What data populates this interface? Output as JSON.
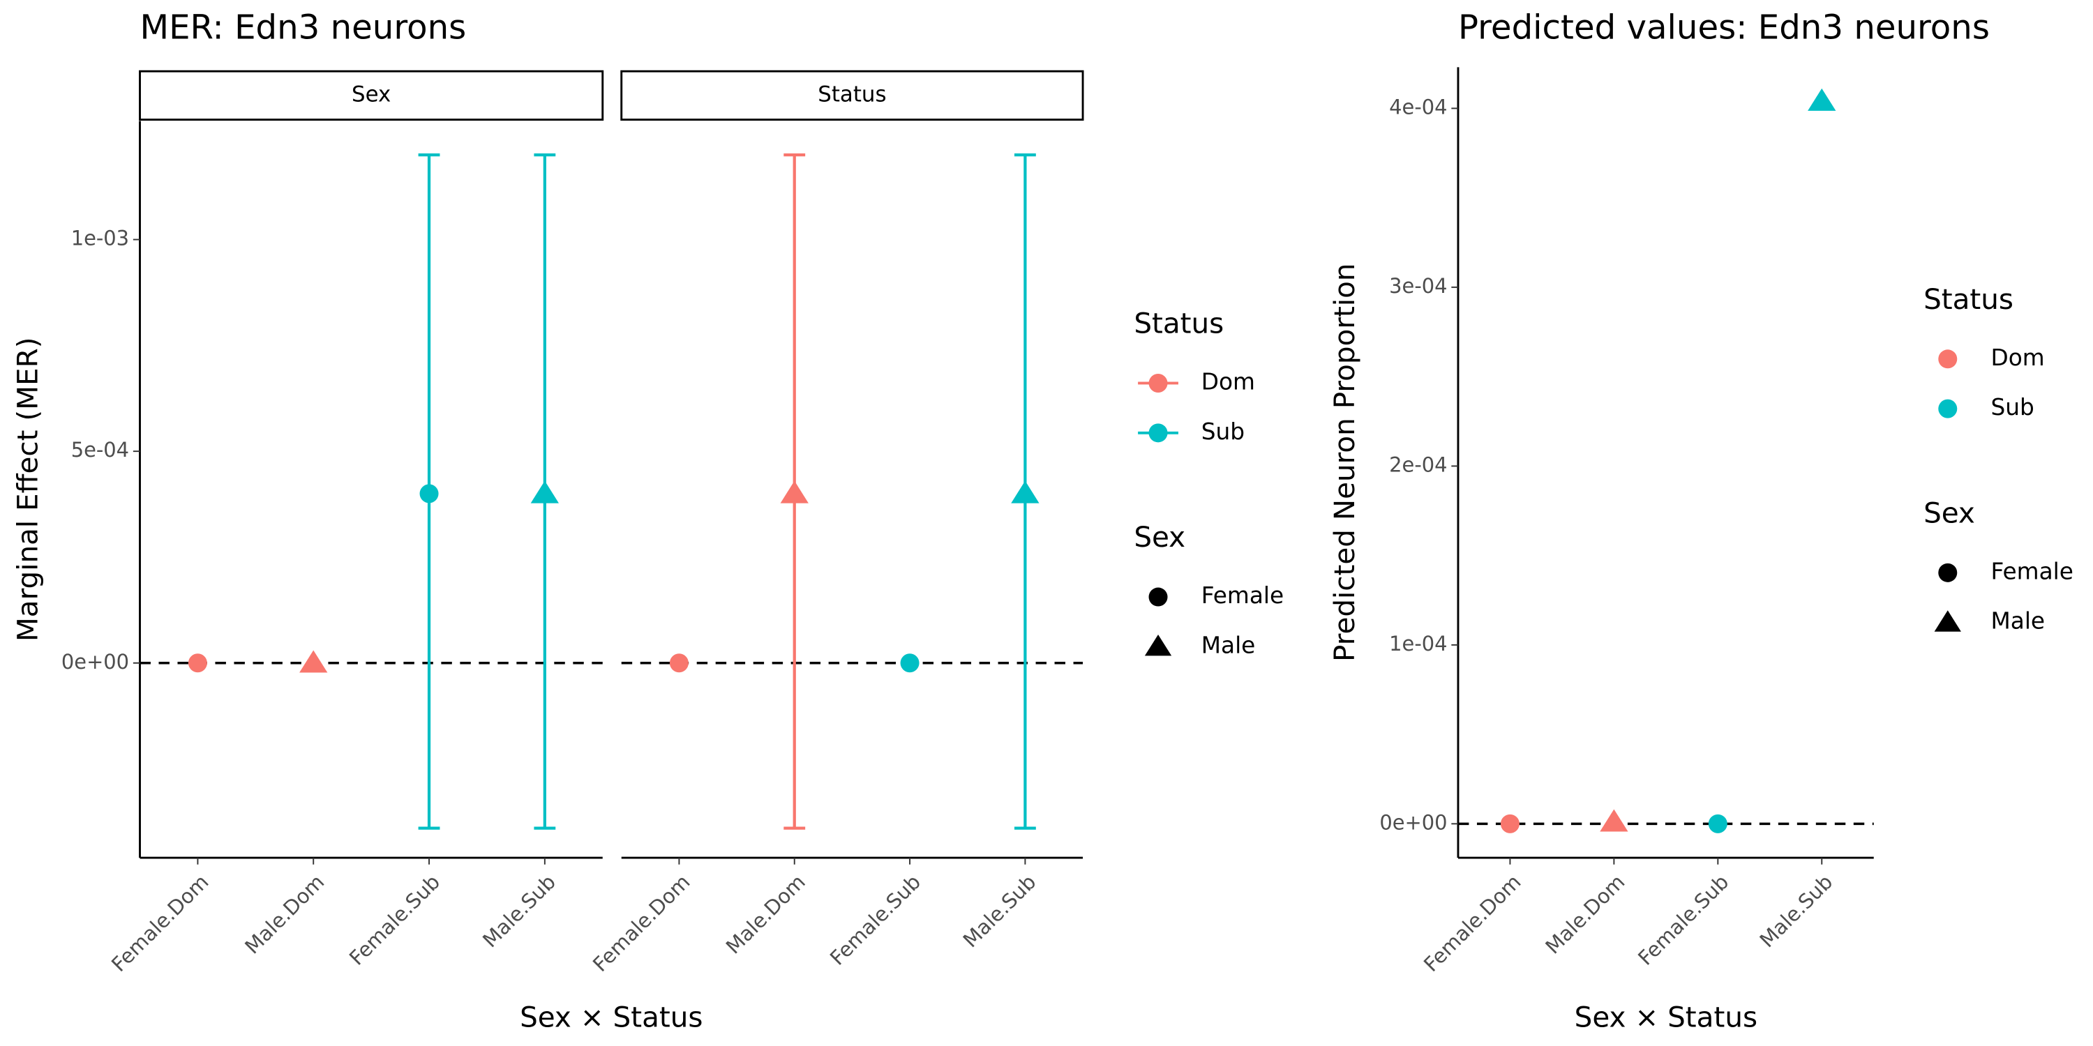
{
  "chart_data": [
    {
      "type": "errorbar",
      "title": "MER: Edn3 neurons",
      "y_label": "Marginal Effect (MER)",
      "x_label": "Sex × Status",
      "ylim": [
        -0.00046,
        0.00128
      ],
      "yticks": [
        {
          "value": 0,
          "label": "0e+00"
        },
        {
          "value": 0.0005,
          "label": "5e-04"
        },
        {
          "value": 0.001,
          "label": "1e-03"
        }
      ],
      "hline": 0,
      "panels": [
        {
          "strip": "Sex",
          "categories": [
            "Female.Dom",
            "Male.Dom",
            "Female.Sub",
            "Male.Sub"
          ],
          "values": [
            0,
            0,
            0.0004,
            0.0004
          ],
          "lower": [
            null,
            null,
            -0.00039,
            -0.00039
          ],
          "upper": [
            null,
            null,
            0.0012,
            0.0012
          ],
          "colors": [
            "#F8766D",
            "#F8766D",
            "#00BFC4",
            "#00BFC4"
          ],
          "shapes": [
            "circle",
            "triangle",
            "circle",
            "triangle"
          ]
        },
        {
          "strip": "Status",
          "categories": [
            "Female.Dom",
            "Male.Dom",
            "Female.Sub",
            "Male.Sub"
          ],
          "values": [
            0,
            0.0004,
            0,
            0.0004
          ],
          "lower": [
            null,
            -0.00039,
            null,
            -0.00039
          ],
          "upper": [
            null,
            0.0012,
            null,
            0.0012
          ],
          "colors": [
            "#F8766D",
            "#F8766D",
            "#00BFC4",
            "#00BFC4"
          ],
          "shapes": [
            "circle",
            "triangle",
            "circle",
            "triangle"
          ]
        }
      ],
      "legends": [
        {
          "title": "Status",
          "entries": [
            {
              "name": "Dom",
              "color": "#F8766D",
              "shape": "circle"
            },
            {
              "name": "Sub",
              "color": "#00BFC4",
              "shape": "circle"
            }
          ]
        },
        {
          "title": "Sex",
          "entries": [
            {
              "name": "Female",
              "color": "#000000",
              "shape": "circle"
            },
            {
              "name": "Male",
              "color": "#000000",
              "shape": "triangle"
            }
          ]
        }
      ]
    },
    {
      "type": "point",
      "title": "Predicted values: Edn3 neurons",
      "y_label": "Predicted Neuron Proportion",
      "x_label": "Sex × Status",
      "ylim": [
        -1.9e-05,
        0.000423
      ],
      "yticks": [
        {
          "value": 0,
          "label": "0e+00"
        },
        {
          "value": 0.0001,
          "label": "1e-04"
        },
        {
          "value": 0.0002,
          "label": "2e-04"
        },
        {
          "value": 0.0003,
          "label": "3e-04"
        },
        {
          "value": 0.0004,
          "label": "4e-04"
        }
      ],
      "hline": 0,
      "panels": [
        {
          "categories": [
            "Female.Dom",
            "Male.Dom",
            "Female.Sub",
            "Male.Sub"
          ],
          "values": [
            0,
            1e-06,
            0,
            0.000404
          ],
          "colors": [
            "#F8766D",
            "#F8766D",
            "#00BFC4",
            "#00BFC4"
          ],
          "shapes": [
            "circle",
            "triangle",
            "circle",
            "triangle"
          ]
        }
      ],
      "legends": [
        {
          "title": "Status",
          "entries": [
            {
              "name": "Dom",
              "color": "#F8766D",
              "shape": "circle"
            },
            {
              "name": "Sub",
              "color": "#00BFC4",
              "shape": "circle"
            }
          ]
        },
        {
          "title": "Sex",
          "entries": [
            {
              "name": "Female",
              "color": "#000000",
              "shape": "circle"
            },
            {
              "name": "Male",
              "color": "#000000",
              "shape": "triangle"
            }
          ]
        }
      ]
    }
  ]
}
